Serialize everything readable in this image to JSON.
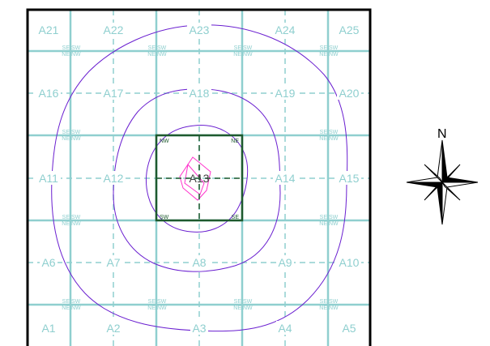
{
  "grid": {
    "rows": [
      [
        "A21",
        "A22",
        "A23",
        "A24",
        "A25"
      ],
      [
        "A16",
        "A17",
        "A18",
        "A19",
        "A20"
      ],
      [
        "A11",
        "A12",
        "A13",
        "A14",
        "A15"
      ],
      [
        "A6",
        "A7",
        "A8",
        "A9",
        "A10"
      ],
      [
        "A1",
        "A2",
        "A3",
        "A4",
        "A5"
      ]
    ],
    "highlighted_cell": "A13",
    "quadrant_labels": {
      "top_left": "SE",
      "top_right": "SW",
      "bottom_left": "NE",
      "bottom_right": "NW"
    }
  },
  "compass": {
    "label": "N"
  },
  "colors": {
    "grid_line": "#8fcfcf",
    "highlight_border": "#1e5a2e",
    "contour": "#6a1fd0",
    "inner_contour": "#ff33cc",
    "frame": "#000000"
  }
}
